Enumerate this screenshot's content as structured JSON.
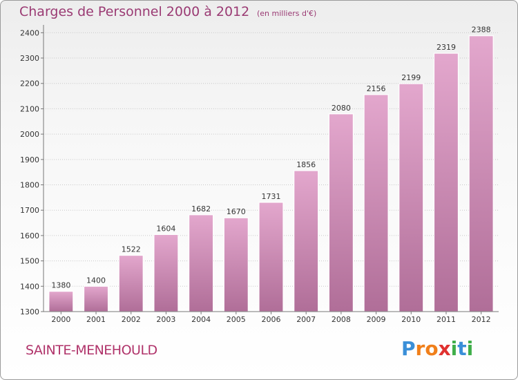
{
  "chart_data": {
    "type": "bar",
    "title": "Charges de Personnel 2000 à 2012",
    "subtitle": "(en milliers d'€)",
    "categories": [
      "2000",
      "2001",
      "2002",
      "2003",
      "2004",
      "2005",
      "2006",
      "2007",
      "2008",
      "2009",
      "2010",
      "2011",
      "2012"
    ],
    "values": [
      1380,
      1400,
      1522,
      1604,
      1682,
      1670,
      1731,
      1856,
      2080,
      2156,
      2199,
      2319,
      2388
    ],
    "y_ticks": [
      1300,
      1400,
      1500,
      1600,
      1700,
      1800,
      1900,
      2000,
      2100,
      2200,
      2300,
      2400
    ],
    "ylim": [
      1300,
      2420
    ],
    "xlabel": "",
    "ylabel": "",
    "grid": true
  },
  "commune_name": "SAINTE-MENEHOULD",
  "logo": {
    "text": "Proxiti",
    "letters": [
      {
        "ch": "P",
        "color": "#3a8fd8"
      },
      {
        "ch": "r",
        "color": "#f07f1a"
      },
      {
        "ch": "o",
        "color": "#f07f1a"
      },
      {
        "ch": "x",
        "color": "#e0312f"
      },
      {
        "ch": "i",
        "color": "#3fae49"
      },
      {
        "ch": "t",
        "color": "#3a8fd8"
      },
      {
        "ch": "i",
        "color": "#3fae49"
      }
    ]
  },
  "colors": {
    "bar_top": "#e3a7cd",
    "bar_bottom": "#b06e98",
    "text": "#9a3a73",
    "grid": "#c8c8c8"
  }
}
